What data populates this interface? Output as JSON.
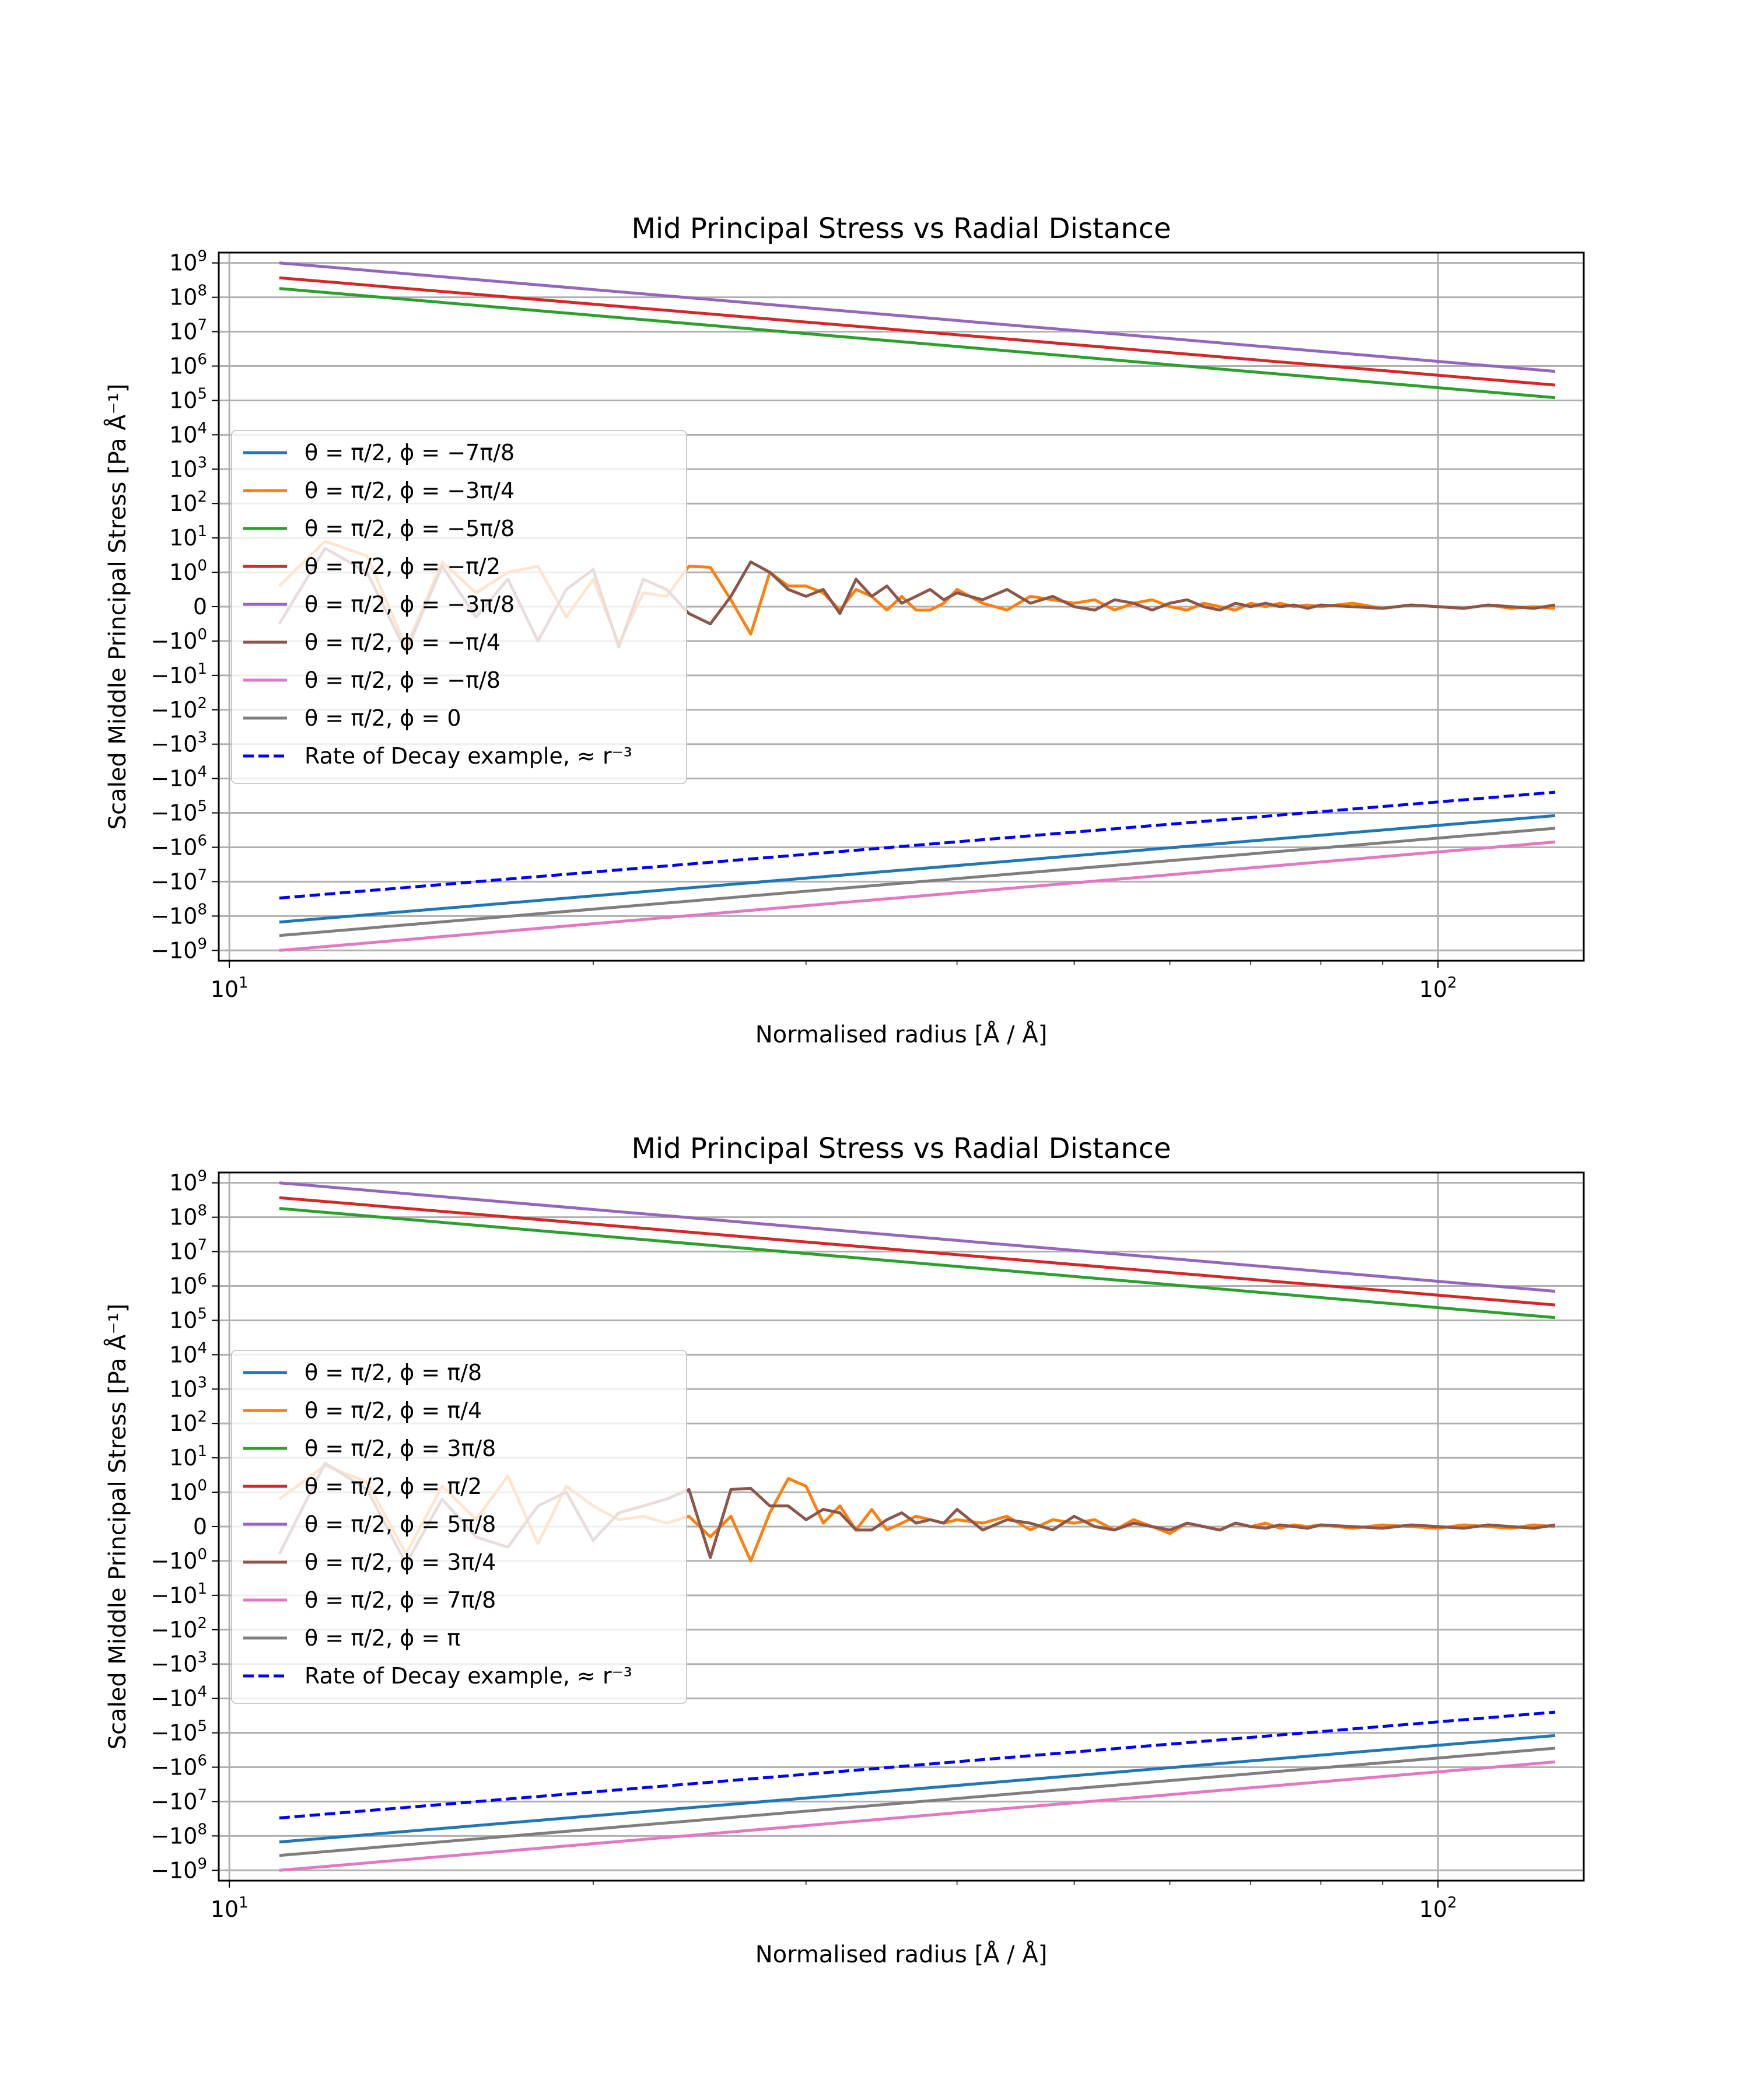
{
  "chart_data": [
    {
      "type": "line",
      "title": "Mid Principal Stress vs Radial Distance",
      "xlabel": "Normalised radius [Å / Å]",
      "ylabel": "Scaled Middle Principal Stress [Pa Å⁻¹]",
      "xscale": "log",
      "yscale": "symlog",
      "xlim": [
        9.8,
        132
      ],
      "ylim": [
        -2000000000.0,
        2000000000.0
      ],
      "grid": true,
      "legend_position": "center-left",
      "x_ticks": [
        {
          "base": "10",
          "exp": "1"
        },
        {
          "base": "10",
          "exp": "2"
        }
      ],
      "y_ticks": [
        {
          "base": "10",
          "exp": "9"
        },
        {
          "base": "10",
          "exp": "8"
        },
        {
          "base": "10",
          "exp": "7"
        },
        {
          "base": "10",
          "exp": "6"
        },
        {
          "base": "10",
          "exp": "5"
        },
        {
          "base": "10",
          "exp": "4"
        },
        {
          "base": "10",
          "exp": "3"
        },
        {
          "base": "10",
          "exp": "2"
        },
        {
          "base": "10",
          "exp": "1"
        },
        {
          "base": "10",
          "exp": "0"
        },
        {
          "base": "0",
          "exp": ""
        },
        {
          "base": "−10",
          "exp": "0"
        },
        {
          "base": "−10",
          "exp": "1"
        },
        {
          "base": "−10",
          "exp": "2"
        },
        {
          "base": "−10",
          "exp": "3"
        },
        {
          "base": "−10",
          "exp": "4"
        },
        {
          "base": "−10",
          "exp": "5"
        },
        {
          "base": "−10",
          "exp": "6"
        },
        {
          "base": "−10",
          "exp": "7"
        },
        {
          "base": "−10",
          "exp": "8"
        },
        {
          "base": "−10",
          "exp": "9"
        }
      ],
      "series": [
        {
          "name": "θ = π/2, ϕ = −7π/8",
          "color": "#1f77b4",
          "style": "solid",
          "x": [
            11,
            125
          ],
          "y": [
            -150000000.0,
            -120000.0
          ]
        },
        {
          "name": "θ = π/2, ϕ = −3π/4",
          "color": "#ff7f0e",
          "style": "solid",
          "x": [
            11,
            12,
            13,
            14,
            15,
            16,
            17,
            18,
            19,
            20,
            21,
            22,
            23,
            24,
            25,
            26,
            27,
            28,
            29,
            30,
            31,
            32,
            33,
            34,
            35,
            36,
            37,
            38,
            39,
            40,
            42,
            44,
            46,
            48,
            50,
            52,
            54,
            56,
            58,
            60,
            62,
            64,
            66,
            68,
            70,
            72,
            74,
            76,
            78,
            80,
            85,
            90,
            95,
            100,
            105,
            110,
            115,
            120,
            125
          ],
          "y": [
            0.6,
            8,
            3,
            -1.5,
            2,
            0.4,
            1,
            1.5,
            -0.3,
            0.8,
            -1.2,
            0.4,
            0.3,
            1.5,
            1.4,
            0.2,
            -0.8,
            1,
            0.6,
            0.6,
            0.4,
            -0.1,
            0.5,
            0.3,
            -0.1,
            0.3,
            -0.1,
            -0.1,
            0.1,
            0.5,
            0.1,
            -0.1,
            0.3,
            0.2,
            0.1,
            0.2,
            -0.1,
            0.1,
            0.2,
            0,
            -0.1,
            0.1,
            0,
            -0.1,
            0.1,
            0,
            0.1,
            0,
            0.05,
            0,
            0.1,
            -0.05,
            0.05,
            0,
            -0.05,
            0.05,
            -0.05,
            0,
            -0.05
          ]
        },
        {
          "name": "θ = π/2, ϕ = −5π/8",
          "color": "#2ca02c",
          "style": "solid",
          "x": [
            11,
            125
          ],
          "y": [
            180000000.0,
            120000.0
          ]
        },
        {
          "name": "θ = π/2, ϕ = −π/2",
          "color": "#d62728",
          "style": "solid",
          "x": [
            11,
            125
          ],
          "y": [
            370000000.0,
            280000.0
          ]
        },
        {
          "name": "θ = π/2, ϕ = −3π/8",
          "color": "#9467bd",
          "style": "solid",
          "x": [
            11,
            125
          ],
          "y": [
            1000000000.0,
            700000.0
          ]
        },
        {
          "name": "θ = π/2, ϕ = −π/4",
          "color": "#8c564b",
          "style": "solid",
          "x": [
            11,
            12,
            13,
            14,
            15,
            16,
            17,
            18,
            19,
            20,
            21,
            22,
            23,
            24,
            25,
            26,
            27,
            28,
            29,
            30,
            31,
            32,
            33,
            34,
            35,
            36,
            37,
            38,
            39,
            40,
            42,
            44,
            46,
            48,
            50,
            52,
            54,
            56,
            58,
            60,
            62,
            64,
            66,
            68,
            70,
            72,
            74,
            76,
            78,
            80,
            85,
            90,
            95,
            100,
            105,
            110,
            115,
            120,
            125
          ],
          "y": [
            -0.5,
            5,
            1,
            -2,
            1.5,
            -0.3,
            0.8,
            -1,
            0.5,
            1.2,
            -1.5,
            0.8,
            0.5,
            -0.2,
            -0.5,
            0.3,
            2,
            1,
            0.5,
            0.3,
            0.5,
            -0.2,
            0.8,
            0.3,
            0.6,
            0.1,
            0.3,
            0.5,
            0.2,
            0.4,
            0.2,
            0.5,
            0.1,
            0.3,
            0,
            -0.1,
            0.2,
            0.1,
            -0.1,
            0.1,
            0.2,
            0,
            -0.1,
            0.1,
            0,
            0.1,
            0,
            0.05,
            -0.05,
            0.05,
            0,
            -0.05,
            0.05,
            0,
            -0.05,
            0.05,
            0,
            -0.05,
            0.05
          ]
        },
        {
          "name": "θ = π/2, ϕ = −π/8",
          "color": "#e377c2",
          "style": "solid",
          "x": [
            11,
            125
          ],
          "y": [
            -1000000000.0,
            -700000.0
          ]
        },
        {
          "name": "θ = π/2, ϕ = 0",
          "color": "#7f7f7f",
          "style": "solid",
          "x": [
            11,
            125
          ],
          "y": [
            -370000000.0,
            -280000.0
          ]
        },
        {
          "name": "Rate of Decay example, ≈ r⁻³",
          "color": "#0000ff",
          "style": "dashed",
          "x": [
            11,
            125
          ],
          "y": [
            -30000000.0,
            -25000.0
          ]
        }
      ]
    },
    {
      "type": "line",
      "title": "Mid Principal Stress vs Radial Distance",
      "xlabel": "Normalised radius [Å / Å]",
      "ylabel": "Scaled Middle Principal Stress [Pa Å⁻¹]",
      "xscale": "log",
      "yscale": "symlog",
      "xlim": [
        9.8,
        132
      ],
      "ylim": [
        -2000000000.0,
        2000000000.0
      ],
      "grid": true,
      "legend_position": "center-left",
      "x_ticks": [
        {
          "base": "10",
          "exp": "1"
        },
        {
          "base": "10",
          "exp": "2"
        }
      ],
      "y_ticks": [
        {
          "base": "10",
          "exp": "9"
        },
        {
          "base": "10",
          "exp": "8"
        },
        {
          "base": "10",
          "exp": "7"
        },
        {
          "base": "10",
          "exp": "6"
        },
        {
          "base": "10",
          "exp": "5"
        },
        {
          "base": "10",
          "exp": "4"
        },
        {
          "base": "10",
          "exp": "3"
        },
        {
          "base": "10",
          "exp": "2"
        },
        {
          "base": "10",
          "exp": "1"
        },
        {
          "base": "10",
          "exp": "0"
        },
        {
          "base": "0",
          "exp": ""
        },
        {
          "base": "−10",
          "exp": "0"
        },
        {
          "base": "−10",
          "exp": "1"
        },
        {
          "base": "−10",
          "exp": "2"
        },
        {
          "base": "−10",
          "exp": "3"
        },
        {
          "base": "−10",
          "exp": "4"
        },
        {
          "base": "−10",
          "exp": "5"
        },
        {
          "base": "−10",
          "exp": "6"
        },
        {
          "base": "−10",
          "exp": "7"
        },
        {
          "base": "−10",
          "exp": "8"
        },
        {
          "base": "−10",
          "exp": "9"
        }
      ],
      "series": [
        {
          "name": "θ = π/2, ϕ = π/8",
          "color": "#1f77b4",
          "style": "solid",
          "x": [
            11,
            125
          ],
          "y": [
            -150000000.0,
            -120000.0
          ]
        },
        {
          "name": "θ = π/2, ϕ = π/4",
          "color": "#ff7f0e",
          "style": "solid",
          "x": [
            11,
            12,
            13,
            14,
            15,
            16,
            17,
            18,
            19,
            20,
            21,
            22,
            23,
            24,
            25,
            26,
            27,
            28,
            29,
            30,
            31,
            32,
            33,
            34,
            35,
            36,
            37,
            38,
            39,
            40,
            42,
            44,
            46,
            48,
            50,
            52,
            54,
            56,
            58,
            60,
            62,
            64,
            66,
            68,
            70,
            72,
            74,
            76,
            78,
            80,
            85,
            90,
            95,
            100,
            105,
            110,
            115,
            120,
            125
          ],
          "y": [
            0.8,
            6,
            2,
            -0.8,
            1.5,
            0.2,
            3,
            -0.5,
            1.5,
            0.6,
            0.2,
            0.3,
            0.1,
            0.3,
            -0.3,
            0.3,
            -1,
            0.4,
            2.5,
            1.5,
            0.1,
            0.6,
            -0.1,
            0.5,
            -0.1,
            0.1,
            0.3,
            0.2,
            0.1,
            0.2,
            0.1,
            0.3,
            -0.1,
            0.2,
            0.1,
            0.2,
            -0.1,
            0.2,
            0,
            -0.2,
            0.1,
            0,
            -0.1,
            0.1,
            0,
            0.1,
            -0.05,
            0.05,
            0,
            0.05,
            -0.05,
            0.05,
            0,
            -0.05,
            0.05,
            0,
            -0.05,
            0.05,
            0
          ]
        },
        {
          "name": "θ = π/2, ϕ = 3π/8",
          "color": "#2ca02c",
          "style": "solid",
          "x": [
            11,
            125
          ],
          "y": [
            180000000.0,
            120000.0
          ]
        },
        {
          "name": "θ = π/2, ϕ = π/2",
          "color": "#d62728",
          "style": "solid",
          "x": [
            11,
            125
          ],
          "y": [
            370000000.0,
            280000.0
          ]
        },
        {
          "name": "θ = π/2, ϕ = 5π/8",
          "color": "#9467bd",
          "style": "solid",
          "x": [
            11,
            125
          ],
          "y": [
            1000000000.0,
            700000.0
          ]
        },
        {
          "name": "θ = π/2, ϕ = 3π/4",
          "color": "#8c564b",
          "style": "solid",
          "x": [
            11,
            12,
            13,
            14,
            15,
            16,
            17,
            18,
            19,
            20,
            21,
            22,
            23,
            24,
            25,
            26,
            27,
            28,
            29,
            30,
            31,
            32,
            33,
            34,
            35,
            36,
            37,
            38,
            39,
            40,
            42,
            44,
            46,
            48,
            50,
            52,
            54,
            56,
            58,
            60,
            62,
            64,
            66,
            68,
            70,
            72,
            74,
            76,
            78,
            80,
            85,
            90,
            95,
            100,
            105,
            110,
            115,
            120,
            125
          ],
          "y": [
            -0.8,
            7,
            1.2,
            -1.2,
            0.8,
            -0.3,
            -0.6,
            0.6,
            1,
            -0.4,
            0.4,
            0.6,
            0.8,
            1.2,
            -0.9,
            1.2,
            1.3,
            0.6,
            0.6,
            0.2,
            0.5,
            0.4,
            -0.1,
            -0.1,
            0.2,
            0.4,
            0.1,
            0.2,
            0.1,
            0.5,
            -0.1,
            0.2,
            0.1,
            -0.1,
            0.3,
            0,
            -0.1,
            0.1,
            0,
            -0.1,
            0.1,
            0,
            -0.1,
            0.1,
            0,
            -0.05,
            0.05,
            0,
            -0.05,
            0.05,
            0,
            -0.05,
            0.05,
            0,
            -0.05,
            0.05,
            0,
            -0.05,
            0.05
          ]
        },
        {
          "name": "θ = π/2, ϕ = 7π/8",
          "color": "#e377c2",
          "style": "solid",
          "x": [
            11,
            125
          ],
          "y": [
            -1000000000.0,
            -700000.0
          ]
        },
        {
          "name": "θ = π/2, ϕ = π",
          "color": "#7f7f7f",
          "style": "solid",
          "x": [
            11,
            125
          ],
          "y": [
            -370000000.0,
            -280000.0
          ]
        },
        {
          "name": "Rate of Decay example, ≈ r⁻³",
          "color": "#0000ff",
          "style": "dashed",
          "x": [
            11,
            125
          ],
          "y": [
            -30000000.0,
            -25000.0
          ]
        }
      ]
    }
  ]
}
